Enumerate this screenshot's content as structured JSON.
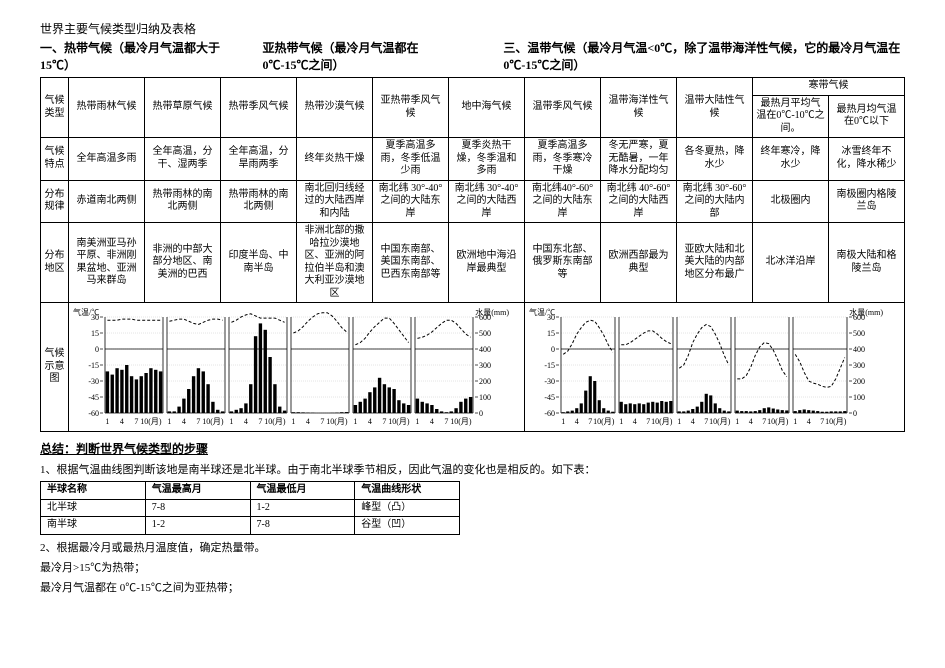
{
  "doc_title": "世界主要气候类型归纳及表格",
  "section_heads": [
    "一、热带气候（最冷月气温都大于 15℃）",
    "亚热带气候（最冷月气温都在 0℃-15℃之间）",
    "三、温带气候（最冷月气温<0℃，除了温带海洋性气候，它的最冷月气温在 0℃-15℃之间）"
  ],
  "row_labels": [
    "气候类型",
    "气候特点",
    "分布规律",
    "分布地区",
    "气候示意图"
  ],
  "polar_header": "寒带气候",
  "polar_sub": [
    "最热月平均气温在0℃-10℃之间。",
    "最热月均气温在0℃以下"
  ],
  "climates": [
    "热带雨林气候",
    "热带草原气候",
    "热带季风气候",
    "热带沙漠气候",
    "亚热带季风气候",
    "地中海气候",
    "温带季风气候",
    "温带海洋性气候",
    "温带大陆性气候",
    "",
    ""
  ],
  "features": [
    "全年高温多雨",
    "全年高温，分干、湿两季",
    "全年高温，分旱雨两季",
    "终年炎热干燥",
    "夏季高温多雨，冬季低温少雨",
    "夏季炎热干燥，冬季温和多雨",
    "夏季高温多雨，冬季寒冷干燥",
    "冬无严寒，夏无酷暑，一年降水分配均匀",
    "各冬夏热，降水少",
    "终年寒冷，降水少",
    "冰雪终年不化，降水稀少"
  ],
  "rules": [
    "赤道南北两侧",
    "热带雨林的南北两侧",
    "热带雨林的南北两侧",
    "南北回归线经过的大陆西岸和内陆",
    "南北纬 30°-40°之间的大陆东岸",
    "南北纬 30°-40°之间的大陆西岸",
    "南北纬40°-60°之间的大陆东岸",
    "南北纬 40°-60°之间的大陆西岸",
    "南北纬 30°-60°之间的大陆内部",
    "北极圈内",
    "南极圈内格陵兰岛"
  ],
  "regions": [
    "南美洲亚马孙平原、非洲刚果盆地、亚洲马来群岛",
    "非洲的中部大部分地区、南美洲的巴西",
    "印度半岛、中南半岛",
    "非洲北部的撒哈拉沙漠地区、亚洲的阿拉伯半岛和澳大利亚沙漠地区",
    "中国东南部、美国东南部、巴西东南部等",
    "欧洲地中海沿岸最典型",
    "中国东北部、俄罗斯东南部等",
    "欧洲西部最为典型",
    "亚欧大陆和北美大陆的内部地区分布最广",
    "北冰洋沿岸",
    "南极大陆和格陵兰岛"
  ],
  "chart_axis_left": "气温/℃",
  "chart_axis_right": "降水量(mm)",
  "chart_ticks_temp": [
    30,
    15,
    0,
    -15,
    -30,
    -45,
    -60
  ],
  "chart_ticks_precip": [
    600,
    500,
    400,
    300,
    200,
    100,
    0
  ],
  "chart_x_ticks": "1  4  7  10(月)",
  "charts": [
    {
      "temp": [
        27,
        27,
        27,
        28,
        28,
        28,
        27,
        27,
        27,
        27,
        27,
        27
      ],
      "precip": [
        260,
        240,
        280,
        270,
        300,
        230,
        210,
        230,
        250,
        280,
        270,
        260
      ]
    },
    {
      "temp": [
        26,
        27,
        28,
        28,
        26,
        24,
        23,
        25,
        27,
        28,
        28,
        27
      ],
      "precip": [
        10,
        10,
        40,
        90,
        150,
        230,
        280,
        260,
        180,
        70,
        20,
        10
      ]
    },
    {
      "temp": [
        25,
        27,
        30,
        32,
        33,
        31,
        29,
        29,
        29,
        29,
        27,
        25
      ],
      "precip": [
        10,
        20,
        30,
        60,
        180,
        480,
        560,
        520,
        350,
        180,
        40,
        15
      ]
    },
    {
      "temp": [
        15,
        17,
        21,
        26,
        30,
        33,
        34,
        34,
        31,
        26,
        20,
        16
      ],
      "precip": [
        5,
        5,
        4,
        3,
        2,
        0,
        0,
        0,
        1,
        3,
        5,
        6
      ]
    },
    {
      "temp": [
        4,
        6,
        10,
        16,
        21,
        25,
        29,
        29,
        24,
        18,
        12,
        6
      ],
      "precip": [
        50,
        70,
        90,
        130,
        160,
        220,
        180,
        160,
        150,
        80,
        60,
        50
      ]
    },
    {
      "temp": [
        10,
        11,
        13,
        16,
        20,
        24,
        27,
        27,
        24,
        19,
        14,
        11
      ],
      "precip": [
        90,
        70,
        60,
        50,
        25,
        10,
        5,
        10,
        30,
        70,
        90,
        100
      ]
    },
    {
      "temp": [
        -5,
        -2,
        5,
        14,
        20,
        25,
        27,
        26,
        20,
        13,
        4,
        -3
      ],
      "precip": [
        5,
        10,
        15,
        30,
        60,
        140,
        230,
        200,
        80,
        30,
        15,
        8
      ]
    },
    {
      "temp": [
        4,
        4,
        6,
        9,
        12,
        15,
        17,
        17,
        14,
        10,
        7,
        5
      ],
      "precip": [
        70,
        55,
        60,
        55,
        60,
        55,
        65,
        70,
        65,
        75,
        70,
        75
      ]
    },
    {
      "temp": [
        -18,
        -15,
        -6,
        6,
        14,
        20,
        23,
        21,
        14,
        5,
        -6,
        -15
      ],
      "precip": [
        10,
        10,
        15,
        25,
        40,
        70,
        120,
        110,
        60,
        30,
        15,
        10
      ]
    },
    {
      "temp": [
        -28,
        -28,
        -25,
        -17,
        -6,
        2,
        6,
        5,
        -1,
        -10,
        -20,
        -26
      ],
      "precip": [
        15,
        12,
        12,
        10,
        12,
        18,
        30,
        35,
        28,
        22,
        18,
        16
      ]
    },
    {
      "temp": [
        -5,
        -12,
        -22,
        -30,
        -32,
        -33,
        -35,
        -36,
        -35,
        -28,
        -18,
        -8
      ],
      "precip": [
        12,
        18,
        22,
        18,
        15,
        12,
        8,
        8,
        10,
        10,
        10,
        12
      ]
    }
  ],
  "chart_style": {
    "width": 72,
    "height": 120,
    "temp_min": -60,
    "temp_max": 30,
    "precip_max": 600,
    "bar_color": "#000000",
    "line_color": "#000000",
    "grid_color": "#c8c8c8",
    "text_color": "#000000",
    "font_size_axis": 8
  },
  "summary_title": "总结：判断世界气候类型的步骤",
  "summary_line1": "1、根据气温曲线图判断该地是南半球还是北半球。由于南北半球季节相反，因此气温的变化也是相反的。如下表：",
  "hemi_table": {
    "headers": [
      "半球名称",
      "气温最高月",
      "气温最低月",
      "气温曲线形状"
    ],
    "rows": [
      [
        "北半球",
        "7-8",
        "1-2",
        "峰型（凸）"
      ],
      [
        "南半球",
        "1-2",
        "7-8",
        "谷型（凹）"
      ]
    ]
  },
  "summary_line2": "2、根据最冷月或最热月温度值，确定热量带。",
  "summary_line3": "最冷月>15℃为热带；",
  "summary_line4": "最冷月气温都在 0℃-15℃之间为亚热带；"
}
